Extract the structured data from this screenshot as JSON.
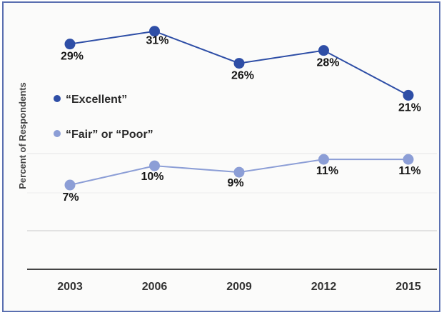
{
  "chart_data": {
    "type": "line",
    "xlabel": "",
    "ylabel": "Percent of Respondents",
    "categories": [
      "2003",
      "2006",
      "2009",
      "2012",
      "2015"
    ],
    "ylim": [
      0,
      34
    ],
    "legend_position": "left",
    "series": [
      {
        "name": "“Excellent”",
        "values": [
          29,
          31,
          26,
          28,
          21
        ],
        "labels": [
          "29%",
          "31%",
          "26%",
          "28%",
          "21%"
        ],
        "color": "#2e4ea6"
      },
      {
        "name": "“Fair” or “Poor”",
        "values": [
          7,
          10,
          9,
          11,
          11
        ],
        "labels": [
          "7%",
          "10%",
          "9%",
          "11%",
          "11%"
        ],
        "color": "#8c9ed6"
      }
    ]
  }
}
